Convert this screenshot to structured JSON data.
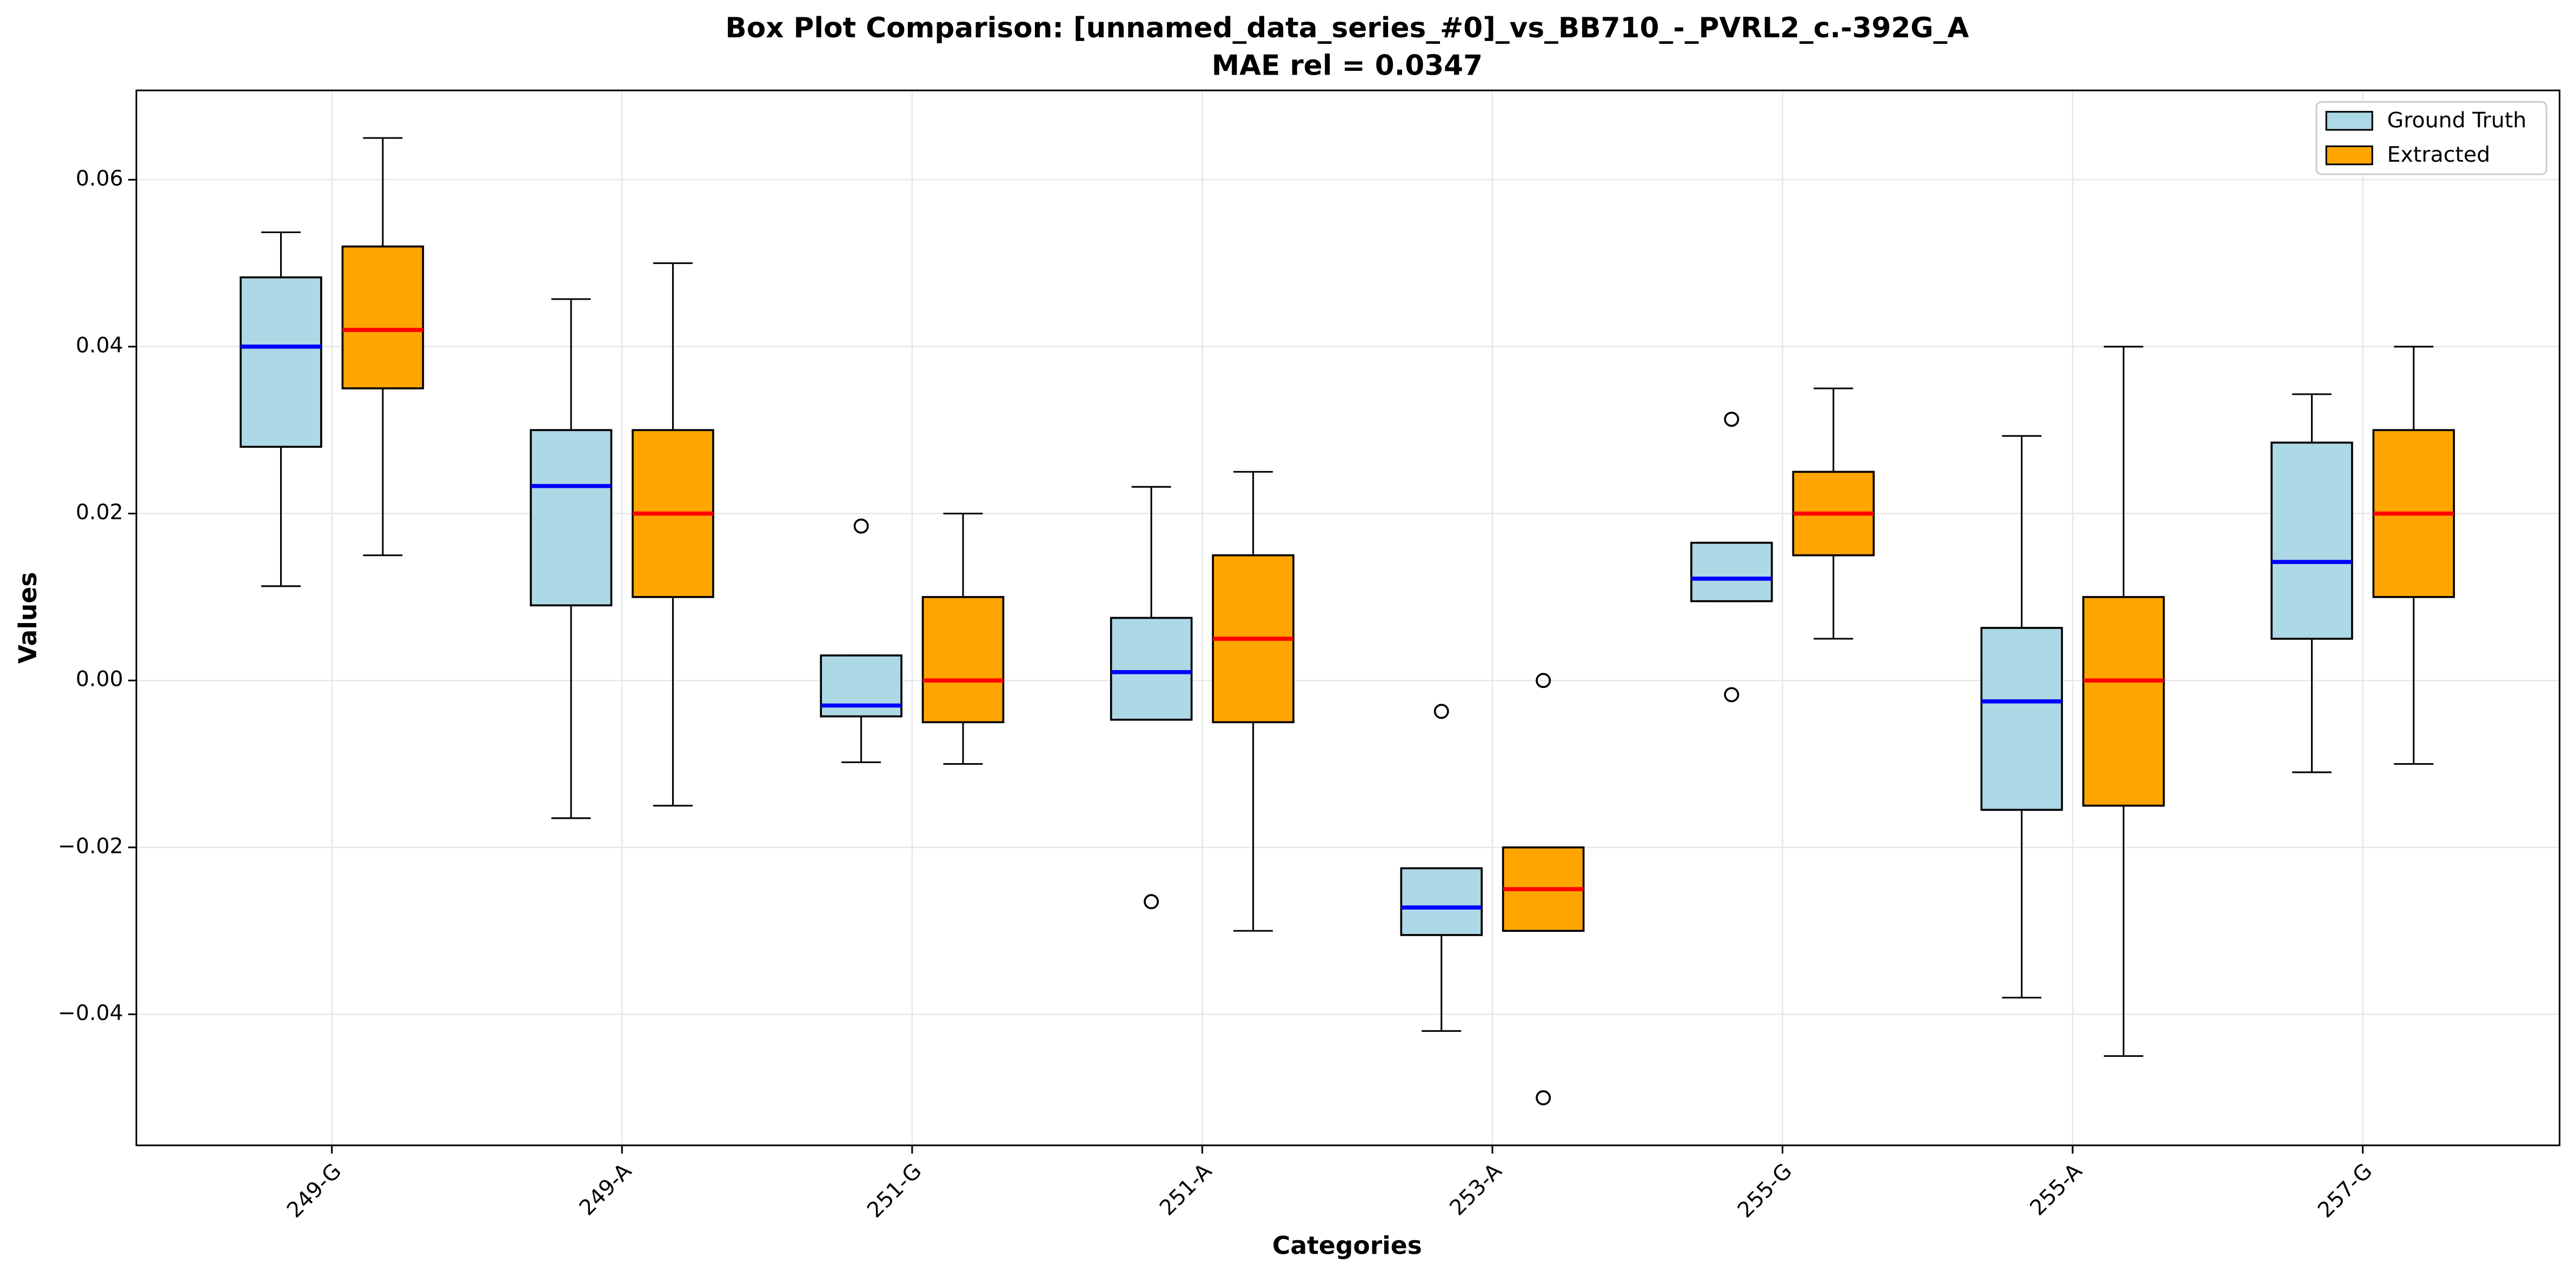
{
  "chart_data": {
    "type": "box",
    "title": "Box Plot Comparison: [unnamed_data_series_#0]_vs_BB710_-_PVRL2_c.-392G_A",
    "subtitle": "MAE rel = 0.0347",
    "x_label": "Categories",
    "y_label": "Values",
    "categories": [
      "249-G",
      "249-A",
      "251-G",
      "251-A",
      "253-A",
      "255-G",
      "255-A",
      "257-G"
    ],
    "ylim": [
      -0.0557,
      0.0707
    ],
    "yticks": [
      {
        "value": -0.04,
        "label": "−0.04"
      },
      {
        "value": -0.02,
        "label": "−0.02"
      },
      {
        "value": 0,
        "label": "0.00"
      },
      {
        "value": 0.02,
        "label": "0.02"
      },
      {
        "value": 0.04,
        "label": "0.04"
      },
      {
        "value": 0.06,
        "label": "0.06"
      }
    ],
    "grid": true,
    "legend": "upper right",
    "series": [
      {
        "name": "Ground Truth",
        "color": "#add8e6",
        "median_color": "#0000ff",
        "low": [
          0.0113,
          -0.0165,
          -0.0098,
          -0.0047,
          -0.042,
          0.0095,
          -0.038,
          -0.011
        ],
        "q1": [
          0.028,
          0.009,
          -0.0043,
          -0.0047,
          -0.0305,
          0.0095,
          -0.0155,
          0.005
        ],
        "median": [
          0.04,
          0.0233,
          -0.003,
          0.001,
          -0.0272,
          0.0122,
          -0.0025,
          0.0142
        ],
        "q3": [
          0.0483,
          0.03,
          0.003,
          0.0075,
          -0.0225,
          0.0165,
          0.0063,
          0.0285
        ],
        "high": [
          0.0537,
          0.0457,
          0.003,
          0.0232,
          -0.0225,
          0.0165,
          0.0293,
          0.0343
        ],
        "outliers": [
          [],
          [],
          [
            0.0185
          ],
          [
            -0.0265
          ],
          [
            -0.0037
          ],
          [
            0.0313,
            -0.0017
          ],
          [],
          []
        ]
      },
      {
        "name": "Extracted",
        "color": "#ffa500",
        "median_color": "#ff0000",
        "low": [
          0.015,
          -0.015,
          -0.01,
          -0.03,
          -0.03,
          0.005,
          -0.045,
          -0.01
        ],
        "q1": [
          0.035,
          0.01,
          -0.005,
          -0.005,
          -0.03,
          0.015,
          -0.015,
          0.01
        ],
        "median": [
          0.042,
          0.02,
          0,
          0.005,
          -0.025,
          0.02,
          0,
          0.02
        ],
        "q3": [
          0.052,
          0.03,
          0.01,
          0.015,
          -0.02,
          0.025,
          0.01,
          0.03
        ],
        "high": [
          0.065,
          0.05,
          0.02,
          0.025,
          -0.02,
          0.035,
          0.04,
          0.04
        ],
        "outliers": [
          [],
          [],
          [],
          [],
          [
            0,
            -0.05
          ],
          [],
          [],
          []
        ]
      }
    ]
  }
}
